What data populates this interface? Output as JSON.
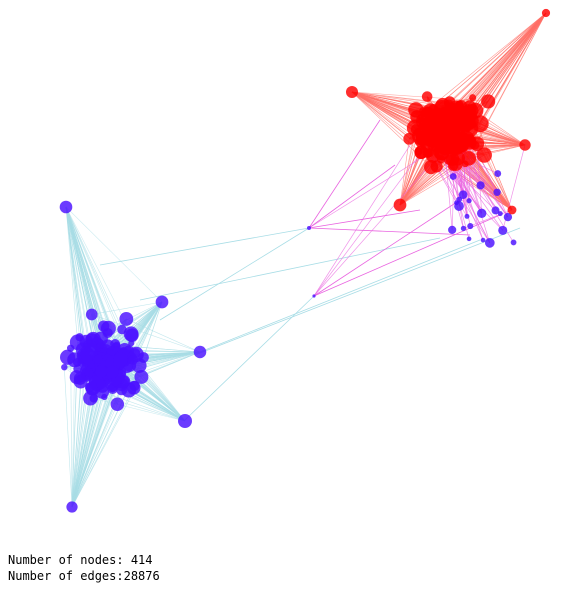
{
  "colors": {
    "cluster_a_node": "#ff0000",
    "cluster_a_edge": "#ff6f66",
    "cluster_b_node": "#4a10ff",
    "cluster_b_edge": "#a8dde6",
    "cross_edge": "#e964e0",
    "background": "#ffffff"
  },
  "stats": {
    "nodes_line": "Number of nodes: 414",
    "edges_line": "Number of edges:28876"
  }
}
